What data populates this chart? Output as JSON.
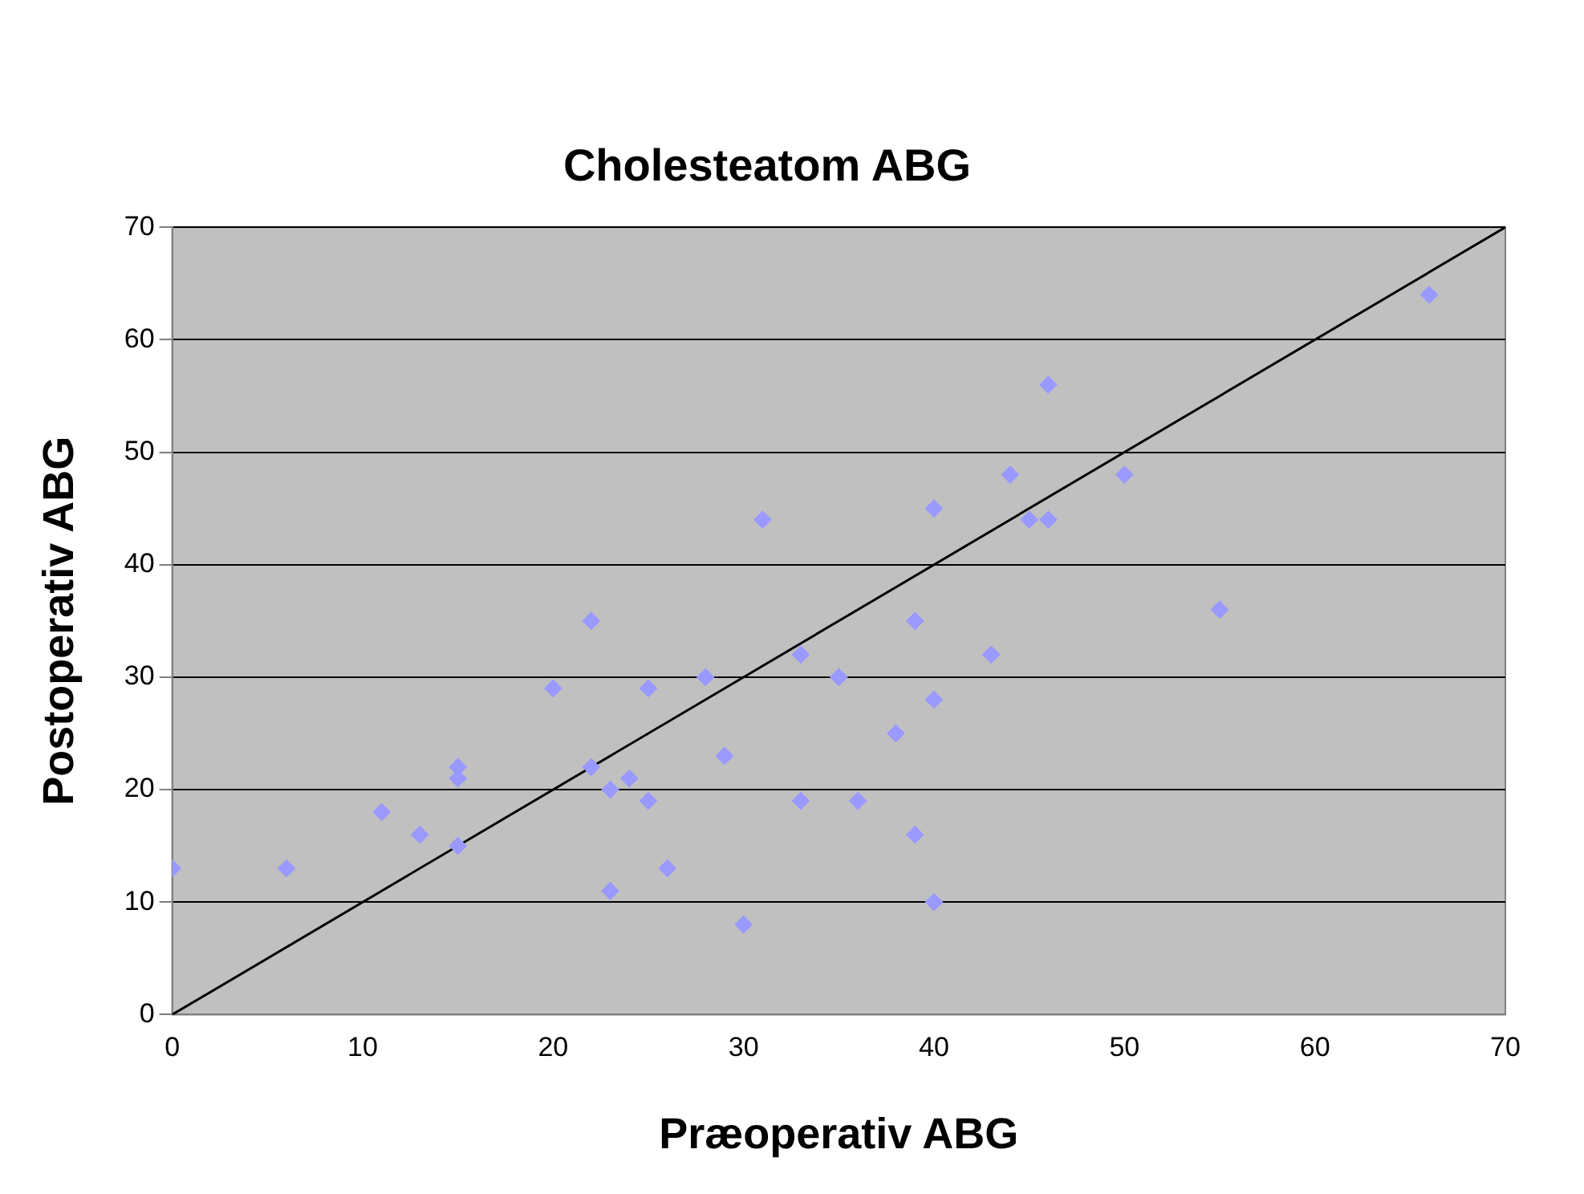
{
  "chart_data": {
    "type": "scatter",
    "title": "Cholesteatom ABG",
    "xlabel": "Præoperativ ABG",
    "ylabel": "Postoperativ ABG",
    "xlim": [
      0,
      70
    ],
    "xticks": [
      0,
      10,
      20,
      30,
      40,
      50,
      60,
      70
    ],
    "ylim": [
      0,
      70
    ],
    "yticks": [
      0,
      10,
      20,
      30,
      40,
      50,
      60,
      70
    ],
    "grid": "y",
    "legend": false,
    "marker": "diamond",
    "series": [
      {
        "color": "#9999ff",
        "x": [
          0,
          6,
          11,
          13,
          15,
          15,
          15,
          20,
          22,
          22,
          23,
          23,
          24,
          25,
          25,
          26,
          28,
          29,
          30,
          31,
          33,
          33,
          35,
          36,
          38,
          39,
          39,
          40,
          40,
          40,
          43,
          44,
          45,
          46,
          46,
          50,
          55,
          66
        ],
        "values": [
          13,
          13,
          18,
          16,
          22,
          21,
          15,
          29,
          35,
          22,
          20,
          11,
          21,
          29,
          19,
          13,
          30,
          23,
          8,
          44,
          32,
          19,
          30,
          19,
          25,
          35,
          16,
          45,
          28,
          10,
          32,
          48,
          44,
          56,
          44,
          48,
          36,
          64
        ]
      },
      {
        "type": "line",
        "color": "#000000",
        "x": [
          0,
          70
        ],
        "values": [
          0,
          70
        ],
        "marker": "none"
      }
    ]
  }
}
